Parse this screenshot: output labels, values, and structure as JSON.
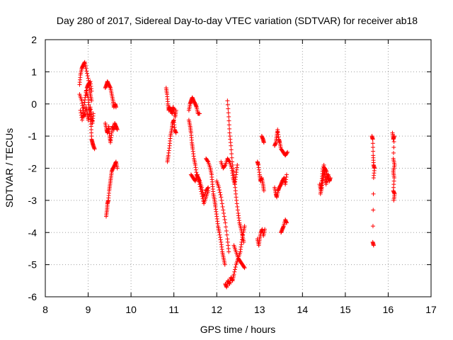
{
  "chart_data": {
    "type": "scatter",
    "title": "Day 280 of 2017, Sidereal Day-to-day VTEC variation (SDTVAR) for receiver ab18",
    "xlabel": "GPS time / hours",
    "ylabel": "SDTVAR / TECUs",
    "xlim": [
      8,
      17
    ],
    "ylim": [
      -6,
      2
    ],
    "xticks": [
      "8",
      "9",
      "10",
      "11",
      "12",
      "13",
      "14",
      "15",
      "16",
      "17"
    ],
    "yticks": [
      "-6",
      "-5",
      "-4",
      "-3",
      "-2",
      "-1",
      "0",
      "1",
      "2"
    ],
    "grid": true,
    "marker": "+",
    "color": "#ff0000",
    "series": [
      {
        "name": "SDTVAR",
        "segments": [
          [
            [
              8.8,
              0.6
            ],
            [
              8.82,
              0.9
            ],
            [
              8.85,
              1.1
            ],
            [
              8.88,
              1.2
            ],
            [
              8.92,
              1.3
            ],
            [
              8.95,
              1.1
            ],
            [
              9.0,
              0.8
            ],
            [
              9.03,
              0.5
            ],
            [
              9.05,
              0.3
            ],
            [
              9.08,
              0.1
            ]
          ],
          [
            [
              8.8,
              0.3
            ],
            [
              8.85,
              0.1
            ],
            [
              8.88,
              -0.2
            ],
            [
              8.9,
              -0.4
            ],
            [
              8.92,
              -0.3
            ],
            [
              8.95,
              -0.1
            ],
            [
              8.98,
              -0.3
            ],
            [
              9.0,
              -0.5
            ],
            [
              9.03,
              -0.3
            ],
            [
              9.05,
              -0.1
            ],
            [
              9.08,
              -0.4
            ],
            [
              9.1,
              -0.6
            ],
            [
              9.12,
              -0.3
            ]
          ],
          [
            [
              8.95,
              0.4
            ],
            [
              9.0,
              0.2
            ],
            [
              9.02,
              -0.1
            ],
            [
              9.05,
              -0.4
            ],
            [
              9.07,
              -0.7
            ],
            [
              9.08,
              -1.1
            ],
            [
              9.1,
              -1.2
            ],
            [
              9.12,
              -1.3
            ],
            [
              9.15,
              -1.4
            ]
          ],
          [
            [
              8.82,
              -0.2
            ],
            [
              8.86,
              -0.5
            ],
            [
              8.9,
              -0.1
            ],
            [
              8.93,
              0.2
            ],
            [
              8.97,
              0.5
            ],
            [
              9.0,
              0.6
            ],
            [
              9.05,
              0.7
            ],
            [
              9.08,
              0.4
            ]
          ],
          [
            [
              9.4,
              0.5
            ],
            [
              9.43,
              0.6
            ],
            [
              9.45,
              0.7
            ],
            [
              9.48,
              0.6
            ],
            [
              9.52,
              0.5
            ],
            [
              9.55,
              0.3
            ],
            [
              9.58,
              0.1
            ],
            [
              9.6,
              -0.1
            ],
            [
              9.63,
              0.0
            ],
            [
              9.65,
              -0.1
            ]
          ],
          [
            [
              9.4,
              -0.6
            ],
            [
              9.43,
              -0.8
            ],
            [
              9.45,
              -0.9
            ],
            [
              9.48,
              -0.7
            ],
            [
              9.5,
              -1.0
            ],
            [
              9.52,
              -1.2
            ],
            [
              9.55,
              -0.9
            ],
            [
              9.57,
              -0.7
            ],
            [
              9.6,
              -0.8
            ],
            [
              9.62,
              -0.6
            ],
            [
              9.65,
              -0.7
            ],
            [
              9.68,
              -0.8
            ]
          ],
          [
            [
              9.42,
              -3.5
            ],
            [
              9.44,
              -3.3
            ],
            [
              9.45,
              -3.1
            ],
            [
              9.47,
              -3.0
            ],
            [
              9.49,
              -2.7
            ],
            [
              9.51,
              -2.5
            ],
            [
              9.53,
              -2.3
            ],
            [
              9.55,
              -2.1
            ],
            [
              9.58,
              -2.0
            ],
            [
              9.62,
              -1.9
            ],
            [
              9.65,
              -1.8
            ],
            [
              9.68,
              -2.0
            ]
          ],
          [
            [
              10.82,
              0.5
            ],
            [
              10.84,
              0.3
            ],
            [
              10.86,
              0.0
            ],
            [
              10.88,
              -0.2
            ],
            [
              10.9,
              -0.1
            ],
            [
              10.93,
              -0.2
            ],
            [
              10.96,
              -0.3
            ],
            [
              10.98,
              -0.1
            ],
            [
              11.0,
              -0.2
            ],
            [
              11.03,
              -0.4
            ],
            [
              11.05,
              -0.2
            ]
          ],
          [
            [
              10.85,
              -1.8
            ],
            [
              10.87,
              -1.6
            ],
            [
              10.9,
              -1.3
            ],
            [
              10.92,
              -1.0
            ],
            [
              10.95,
              -0.8
            ],
            [
              10.97,
              -0.6
            ],
            [
              11.0,
              -0.5
            ],
            [
              11.02,
              -0.8
            ],
            [
              11.05,
              -0.9
            ]
          ],
          [
            [
              11.35,
              -0.2
            ],
            [
              11.38,
              0.0
            ],
            [
              11.4,
              0.1
            ],
            [
              11.43,
              0.2
            ],
            [
              11.46,
              0.1
            ],
            [
              11.5,
              0.0
            ],
            [
              11.53,
              -0.1
            ],
            [
              11.56,
              -0.3
            ],
            [
              11.6,
              -0.3
            ]
          ],
          [
            [
              11.35,
              -0.5
            ],
            [
              11.38,
              -0.7
            ],
            [
              11.4,
              -0.9
            ],
            [
              11.42,
              -1.2
            ],
            [
              11.44,
              -1.4
            ],
            [
              11.47,
              -1.7
            ],
            [
              11.5,
              -1.9
            ],
            [
              11.53,
              -2.2
            ],
            [
              11.57,
              -2.3
            ],
            [
              11.6,
              -2.4
            ],
            [
              11.65,
              -2.6
            ],
            [
              11.7,
              -2.9
            ],
            [
              11.75,
              -2.7
            ],
            [
              11.8,
              -2.6
            ]
          ],
          [
            [
              11.4,
              -2.2
            ],
            [
              11.45,
              -2.3
            ],
            [
              11.5,
              -2.4
            ],
            [
              11.55,
              -2.2
            ],
            [
              11.6,
              -2.5
            ],
            [
              11.65,
              -2.8
            ],
            [
              11.7,
              -3.1
            ],
            [
              11.75,
              -2.9
            ],
            [
              11.8,
              -2.7
            ]
          ],
          [
            [
              11.75,
              -1.7
            ],
            [
              11.8,
              -1.8
            ],
            [
              11.85,
              -2.0
            ],
            [
              11.88,
              -2.2
            ],
            [
              11.9,
              -2.5
            ],
            [
              11.92,
              -2.8
            ],
            [
              11.95,
              -3.0
            ],
            [
              11.97,
              -3.2
            ],
            [
              12.0,
              -3.5
            ],
            [
              12.03,
              -3.8
            ],
            [
              12.06,
              -4.0
            ],
            [
              12.1,
              -4.3
            ],
            [
              12.13,
              -4.6
            ],
            [
              12.16,
              -4.8
            ],
            [
              12.19,
              -5.0
            ]
          ],
          [
            [
              12.2,
              -5.6
            ],
            [
              12.23,
              -5.7
            ],
            [
              12.26,
              -5.5
            ],
            [
              12.3,
              -5.6
            ],
            [
              12.33,
              -5.4
            ],
            [
              12.37,
              -5.5
            ],
            [
              12.4,
              -5.3
            ],
            [
              12.45,
              -5.0
            ],
            [
              12.5,
              -4.8
            ],
            [
              12.55,
              -4.9
            ],
            [
              12.6,
              -5.0
            ],
            [
              12.65,
              -5.1
            ]
          ],
          [
            [
              12.25,
              0.1
            ],
            [
              12.28,
              -0.4
            ],
            [
              12.3,
              -0.9
            ],
            [
              12.33,
              -1.3
            ],
            [
              12.36,
              -1.8
            ],
            [
              12.4,
              -2.2
            ],
            [
              12.43,
              -2.6
            ],
            [
              12.46,
              -3.0
            ],
            [
              12.5,
              -3.4
            ],
            [
              12.53,
              -3.7
            ],
            [
              12.57,
              -3.9
            ],
            [
              12.6,
              -4.1
            ],
            [
              12.63,
              -4.3
            ]
          ],
          [
            [
              12.1,
              -1.8
            ],
            [
              12.15,
              -2.0
            ],
            [
              12.2,
              -1.9
            ],
            [
              12.25,
              -1.7
            ],
            [
              12.3,
              -1.8
            ],
            [
              12.35,
              -2.0
            ],
            [
              12.38,
              -2.3
            ],
            [
              12.42,
              -2.5
            ],
            [
              12.45,
              -2.2
            ],
            [
              12.48,
              -1.9
            ]
          ],
          [
            [
              12.4,
              -4.4
            ],
            [
              12.45,
              -4.6
            ],
            [
              12.5,
              -4.8
            ],
            [
              12.55,
              -4.6
            ],
            [
              12.58,
              -4.3
            ],
            [
              12.62,
              -4.0
            ],
            [
              12.65,
              -3.8
            ]
          ],
          [
            [
              12.0,
              -2.4
            ],
            [
              12.05,
              -2.6
            ],
            [
              12.1,
              -2.9
            ],
            [
              12.15,
              -3.3
            ],
            [
              12.2,
              -3.7
            ],
            [
              12.25,
              -4.2
            ],
            [
              12.28,
              -4.6
            ]
          ],
          [
            [
              12.95,
              -1.8
            ],
            [
              12.97,
              -1.9
            ],
            [
              13.0,
              -2.2
            ],
            [
              13.02,
              -2.4
            ],
            [
              13.05,
              -2.3
            ],
            [
              13.08,
              -2.5
            ],
            [
              13.1,
              -2.7
            ]
          ],
          [
            [
              12.95,
              -4.2
            ],
            [
              12.98,
              -4.4
            ],
            [
              13.0,
              -4.2
            ],
            [
              13.03,
              -4.0
            ],
            [
              13.06,
              -3.9
            ],
            [
              13.09,
              -4.1
            ],
            [
              13.12,
              -3.9
            ]
          ],
          [
            [
              13.05,
              -1.0
            ],
            [
              13.08,
              -1.1
            ],
            [
              13.1,
              -1.2
            ]
          ],
          [
            [
              13.35,
              -1.3
            ],
            [
              13.38,
              -1.2
            ],
            [
              13.4,
              -1.0
            ],
            [
              13.42,
              -0.8
            ],
            [
              13.45,
              -1.1
            ],
            [
              13.47,
              -1.2
            ],
            [
              13.5,
              -1.4
            ],
            [
              13.55,
              -1.5
            ],
            [
              13.6,
              -1.6
            ],
            [
              13.65,
              -1.5
            ]
          ],
          [
            [
              13.35,
              -2.6
            ],
            [
              13.38,
              -2.8
            ],
            [
              13.4,
              -2.9
            ],
            [
              13.43,
              -2.7
            ],
            [
              13.46,
              -2.6
            ],
            [
              13.5,
              -2.5
            ],
            [
              13.53,
              -2.4
            ],
            [
              13.57,
              -2.3
            ],
            [
              13.6,
              -2.5
            ],
            [
              13.63,
              -2.2
            ]
          ],
          [
            [
              13.5,
              -4.0
            ],
            [
              13.53,
              -3.9
            ],
            [
              13.56,
              -3.8
            ],
            [
              13.6,
              -3.6
            ],
            [
              13.63,
              -3.7
            ]
          ],
          [
            [
              14.4,
              -2.5
            ],
            [
              14.43,
              -2.7
            ],
            [
              14.45,
              -2.4
            ],
            [
              14.47,
              -2.1
            ],
            [
              14.5,
              -1.9
            ],
            [
              14.52,
              -2.2
            ],
            [
              14.55,
              -2.5
            ],
            [
              14.57,
              -2.3
            ],
            [
              14.6,
              -2.2
            ],
            [
              14.63,
              -2.4
            ],
            [
              14.65,
              -2.3
            ]
          ],
          [
            [
              14.42,
              -2.8
            ],
            [
              14.45,
              -2.6
            ],
            [
              14.48,
              -2.3
            ],
            [
              14.52,
              -2.0
            ],
            [
              14.56,
              -2.1
            ],
            [
              14.6,
              -2.4
            ]
          ],
          [
            [
              15.62,
              -1.0
            ],
            [
              15.64,
              -1.1
            ],
            [
              15.65,
              -1.6
            ],
            [
              15.66,
              -1.9
            ],
            [
              15.68,
              -2.0
            ],
            [
              15.66,
              -2.3
            ],
            [
              15.64,
              -4.3
            ],
            [
              15.66,
              -4.4
            ]
          ],
          [
            [
              16.1,
              -0.9
            ],
            [
              16.12,
              -1.1
            ],
            [
              16.14,
              -1.0
            ],
            [
              16.12,
              -1.7
            ],
            [
              16.15,
              -1.9
            ],
            [
              16.12,
              -2.1
            ],
            [
              16.14,
              -2.3
            ],
            [
              16.12,
              -2.7
            ],
            [
              16.15,
              -2.8
            ],
            [
              16.13,
              -3.0
            ]
          ]
        ]
      }
    ]
  }
}
